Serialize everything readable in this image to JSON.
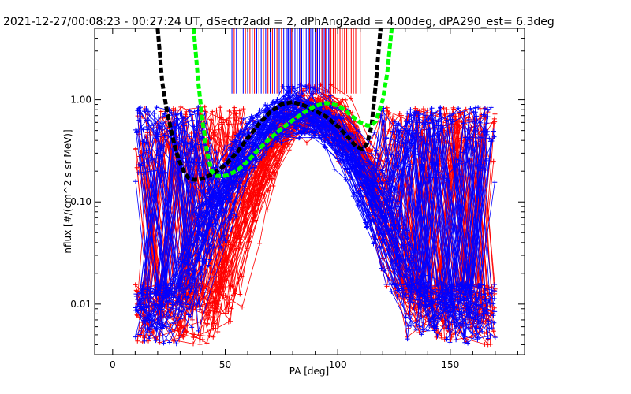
{
  "chart_data": {
    "type": "line",
    "title": "2021-12-27/00:08:23 - 00:27:24 UT, dSectr2add = 2, dPhAng2add = 4.00deg, dPA290_est=   6.3deg",
    "xlabel": "PA [deg]",
    "ylabel": "nflux [#/(cm^2 s sr MeV)]",
    "xlim": [
      -8,
      183
    ],
    "ylim": [
      0.0032,
      5.0
    ],
    "yscale": "log",
    "xticks": [
      0,
      50,
      100,
      150
    ],
    "xtick_labels": [
      "0",
      "50",
      "100",
      "150"
    ],
    "yticks": [
      0.01,
      0.1,
      1.0
    ],
    "ytick_labels": [
      "0.01",
      "0.10",
      "1.00"
    ],
    "grid": false,
    "colors": {
      "red": "#ff0000",
      "blue": "#0000ff",
      "black": "#000000",
      "green": "#00ff00"
    },
    "vlines": {
      "ymin": 1.15,
      "ymax": 5.0,
      "blue_x": [
        53,
        55,
        58,
        60,
        62,
        64,
        66,
        68,
        70,
        72,
        74,
        76,
        77.5,
        78,
        79,
        80,
        81,
        82,
        83,
        84,
        85,
        86,
        87,
        88,
        89,
        90,
        91,
        92,
        93,
        94,
        95,
        96
      ],
      "red_x": [
        54,
        57,
        59,
        61,
        63,
        65,
        67,
        69,
        71,
        73,
        75,
        79.5,
        83.5,
        87.5,
        90.5,
        93,
        94.5,
        96.5,
        97,
        98,
        99,
        100,
        101,
        102,
        103,
        104,
        105,
        106,
        107,
        108,
        110
      ]
    },
    "series": [
      {
        "color": "black",
        "style": "dashed",
        "x": [
          20,
          22,
          24,
          26,
          28,
          30,
          32,
          34,
          36,
          38,
          40,
          45,
          50,
          55,
          60,
          65,
          70,
          75,
          80,
          85,
          90,
          95,
          100,
          105,
          108,
          111,
          113,
          115,
          117,
          119
        ],
        "y": [
          5.0,
          1.5,
          0.8,
          0.5,
          0.32,
          0.24,
          0.19,
          0.17,
          0.165,
          0.165,
          0.17,
          0.19,
          0.23,
          0.3,
          0.42,
          0.58,
          0.76,
          0.9,
          0.95,
          0.88,
          0.78,
          0.68,
          0.55,
          0.42,
          0.35,
          0.33,
          0.37,
          0.55,
          1.5,
          5.0
        ]
      },
      {
        "color": "green",
        "style": "dashed",
        "x": [
          36,
          38,
          40,
          42,
          44,
          46,
          50,
          55,
          60,
          65,
          70,
          75,
          80,
          85,
          90,
          95,
          100,
          103,
          106,
          110,
          113,
          115,
          117,
          120,
          122,
          124
        ],
        "y": [
          5.0,
          1.5,
          0.6,
          0.3,
          0.2,
          0.18,
          0.18,
          0.2,
          0.25,
          0.33,
          0.42,
          0.52,
          0.63,
          0.75,
          0.87,
          0.93,
          0.88,
          0.8,
          0.7,
          0.6,
          0.56,
          0.56,
          0.62,
          1.0,
          1.8,
          5.0
        ]
      }
    ]
  }
}
